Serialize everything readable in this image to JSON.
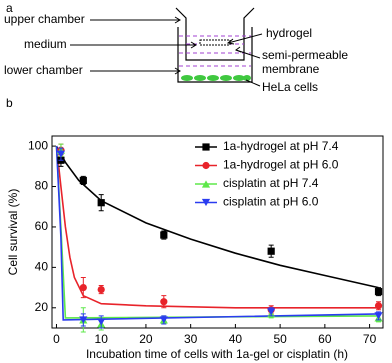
{
  "diagram": {
    "panel_label": "a",
    "labels": [
      "upper chamber",
      "medium",
      "lower chamber",
      "hydrogel",
      "semi-permeable",
      "membrane",
      "HeLa cells"
    ]
  },
  "chart_data": {
    "type": "scatter",
    "panel_label": "b",
    "x_label": "Incubation time of cells with 1a-gel or cisplatin (h)",
    "y_label": "Cell survival (%)",
    "xlim": [
      -1,
      73
    ],
    "ylim": [
      10,
      105
    ],
    "xticks": [
      0,
      10,
      20,
      30,
      40,
      50,
      60,
      70
    ],
    "yticks": [
      20,
      40,
      60,
      80,
      100
    ],
    "legend": "upper right",
    "x": [
      1,
      6,
      10,
      24,
      48,
      72
    ],
    "series": [
      {
        "name": "1a-hydrogel at pH 7.4",
        "color": "#000000",
        "marker": "square",
        "values": [
          93,
          83,
          72,
          56,
          48,
          28
        ],
        "errors": [
          3,
          2,
          4,
          2,
          3,
          2
        ],
        "fit_x": [
          0,
          2,
          5,
          10,
          20,
          30,
          40,
          50,
          60,
          72
        ],
        "fit": [
          100,
          92,
          83,
          73,
          62,
          54,
          47,
          41,
          36,
          30
        ]
      },
      {
        "name": "1a-hydrogel at pH 6.0",
        "color": "#e8232a",
        "marker": "circle",
        "values": [
          98,
          30,
          29,
          23,
          19,
          21
        ],
        "errors": [
          3,
          5,
          2,
          3,
          2,
          2
        ],
        "fit_x": [
          0,
          1,
          2,
          3,
          4,
          6,
          10,
          20,
          40,
          72
        ],
        "fit": [
          100,
          80,
          60,
          45,
          35,
          26,
          22,
          21,
          20,
          20
        ]
      },
      {
        "name": "cisplatin at pH 7.4",
        "color": "#5ee84a",
        "marker": "triangle-up",
        "values": [
          98,
          14,
          12,
          14,
          17,
          15
        ],
        "errors": [
          3,
          6,
          3,
          2,
          2,
          2
        ],
        "fit_x": [
          0,
          1,
          2,
          72
        ],
        "fit": [
          100,
          60,
          15,
          16
        ]
      },
      {
        "name": "cisplatin at pH 6.0",
        "color": "#2a3cf0",
        "marker": "triangle-down",
        "values": [
          96,
          14,
          13,
          14,
          18,
          16
        ],
        "errors": [
          3,
          3,
          3,
          2,
          2,
          2
        ],
        "fit_x": [
          0,
          1,
          1.5,
          72
        ],
        "fit": [
          100,
          55,
          14,
          17
        ]
      }
    ]
  }
}
